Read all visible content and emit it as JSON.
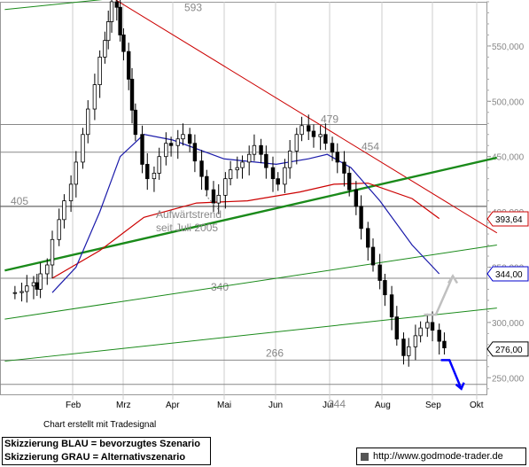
{
  "chart_data": {
    "type": "candlestick",
    "y_axis": {
      "min": 235,
      "max": 590,
      "side": "right",
      "tick_labels": [
        "550,000",
        "500,000",
        "450,000",
        "400,000",
        "350,000",
        "300,000",
        "250,000"
      ],
      "tick_values": [
        550,
        500,
        450,
        400,
        350,
        300,
        250
      ]
    },
    "x_axis": {
      "month_labels": [
        "Feb",
        "Mrz",
        "Apr",
        "Mai",
        "Jun",
        "Jul",
        "Aug",
        "Sep",
        "Okt"
      ]
    },
    "price_series": [
      [
        "2005-12-29",
        327
      ],
      [
        "2006-01-02",
        328
      ],
      [
        "2006-01-05",
        333
      ],
      [
        "2006-01-09",
        336
      ],
      [
        "2006-01-11",
        330
      ],
      [
        "2006-01-13",
        344
      ],
      [
        "2006-01-17",
        352
      ],
      [
        "2006-01-20",
        375
      ],
      [
        "2006-01-24",
        393
      ],
      [
        "2006-01-27",
        410
      ],
      [
        "2006-01-31",
        425
      ],
      [
        "2006-02-03",
        445
      ],
      [
        "2006-02-07",
        470
      ],
      [
        "2006-02-10",
        493
      ],
      [
        "2006-02-14",
        515
      ],
      [
        "2006-02-17",
        540
      ],
      [
        "2006-02-20",
        555
      ],
      [
        "2006-02-22",
        572
      ],
      [
        "2006-02-24",
        590
      ],
      [
        "2006-02-27",
        585
      ],
      [
        "2006-03-01",
        560
      ],
      [
        "2006-03-03",
        545
      ],
      [
        "2006-03-06",
        520
      ],
      [
        "2006-03-08",
        492
      ],
      [
        "2006-03-10",
        470
      ],
      [
        "2006-03-14",
        443
      ],
      [
        "2006-03-17",
        430
      ],
      [
        "2006-03-21",
        435
      ],
      [
        "2006-03-24",
        450
      ],
      [
        "2006-03-28",
        462
      ],
      [
        "2006-03-31",
        460
      ],
      [
        "2006-04-04",
        466
      ],
      [
        "2006-04-07",
        470
      ],
      [
        "2006-04-11",
        462
      ],
      [
        "2006-04-14",
        446
      ],
      [
        "2006-04-18",
        432
      ],
      [
        "2006-04-21",
        420
      ],
      [
        "2006-04-25",
        408
      ],
      [
        "2006-04-28",
        415
      ],
      [
        "2006-05-02",
        430
      ],
      [
        "2006-05-05",
        438
      ],
      [
        "2006-05-09",
        440
      ],
      [
        "2006-05-12",
        445
      ],
      [
        "2006-05-16",
        452
      ],
      [
        "2006-05-19",
        460
      ],
      [
        "2006-05-23",
        452
      ],
      [
        "2006-05-26",
        440
      ],
      [
        "2006-05-30",
        430
      ],
      [
        "2006-06-02",
        425
      ],
      [
        "2006-06-06",
        440
      ],
      [
        "2006-06-09",
        455
      ],
      [
        "2006-06-13",
        470
      ],
      [
        "2006-06-16",
        478
      ],
      [
        "2006-06-20",
        473
      ],
      [
        "2006-06-23",
        468
      ],
      [
        "2006-06-27",
        470
      ],
      [
        "2006-06-30",
        462
      ],
      [
        "2006-07-04",
        454
      ],
      [
        "2006-07-07",
        445
      ],
      [
        "2006-07-11",
        435
      ],
      [
        "2006-07-14",
        420
      ],
      [
        "2006-07-18",
        405
      ],
      [
        "2006-07-21",
        385
      ],
      [
        "2006-07-25",
        368
      ],
      [
        "2006-07-28",
        352
      ],
      [
        "2006-08-01",
        338
      ],
      [
        "2006-08-04",
        325
      ],
      [
        "2006-08-08",
        305
      ],
      [
        "2006-08-11",
        285
      ],
      [
        "2006-08-15",
        270
      ],
      [
        "2006-08-18",
        278
      ],
      [
        "2006-08-22",
        288
      ],
      [
        "2006-08-25",
        295
      ],
      [
        "2006-08-29",
        300
      ],
      [
        "2006-09-01",
        293
      ],
      [
        "2006-09-05",
        283
      ],
      [
        "2006-09-08",
        277
      ]
    ],
    "moving_average_blue": [
      [
        "2006-01-20",
        327
      ],
      [
        "2006-02-03",
        350
      ],
      [
        "2006-02-17",
        400
      ],
      [
        "2006-03-01",
        450
      ],
      [
        "2006-03-15",
        470
      ],
      [
        "2006-04-01",
        465
      ],
      [
        "2006-05-01",
        448
      ],
      [
        "2006-06-01",
        443
      ],
      [
        "2006-06-20",
        448
      ],
      [
        "2006-07-01",
        452
      ],
      [
        "2006-07-15",
        440
      ],
      [
        "2006-08-01",
        410
      ],
      [
        "2006-08-20",
        370
      ],
      [
        "2006-09-05",
        344
      ]
    ],
    "moving_average_red": [
      [
        "2006-01-20",
        340
      ],
      [
        "2006-02-17",
        365
      ],
      [
        "2006-03-15",
        395
      ],
      [
        "2006-04-15",
        408
      ],
      [
        "2006-05-15",
        410
      ],
      [
        "2006-06-15",
        418
      ],
      [
        "2006-07-05",
        425
      ],
      [
        "2006-07-25",
        426
      ],
      [
        "2006-08-20",
        412
      ],
      [
        "2006-09-05",
        394
      ]
    ],
    "horizontal_levels": [
      {
        "label": "593",
        "value": 593
      },
      {
        "label": "479",
        "value": 479
      },
      {
        "label": "454",
        "value": 454
      },
      {
        "label": "405",
        "value": 405
      },
      {
        "label": "340",
        "value": 340
      },
      {
        "label": "266",
        "value": 266
      },
      {
        "label": "244",
        "value": 244
      }
    ],
    "price_tags": [
      {
        "label": "393,64",
        "value": 393.64,
        "color": "#cc0000"
      },
      {
        "label": "344,00",
        "value": 344.0,
        "color": "#0000cc"
      },
      {
        "label": "276,00",
        "value": 276.0,
        "color": "#000000"
      }
    ],
    "annotation": {
      "lines": [
        "Aufwärtstrend",
        "seit Juli 2005"
      ]
    },
    "colors": {
      "candle": "#000000",
      "ma_blue": "#1a1aaa",
      "ma_red": "#cc0000",
      "trend_red": "#cc0000",
      "trend_green": "#1a8a1a",
      "scenario_blue": "#0000ff",
      "scenario_grey": "#c0c0c0",
      "level_line": "#888888"
    }
  },
  "credit": "Chart erstellt mit Tradesignal",
  "legend": {
    "line1": "Skizzierung BLAU = bevorzugtes Szenario",
    "line2": "Skizzierung GRAU = Alternativszenario"
  },
  "url": "http://www.godmode-trader.de"
}
